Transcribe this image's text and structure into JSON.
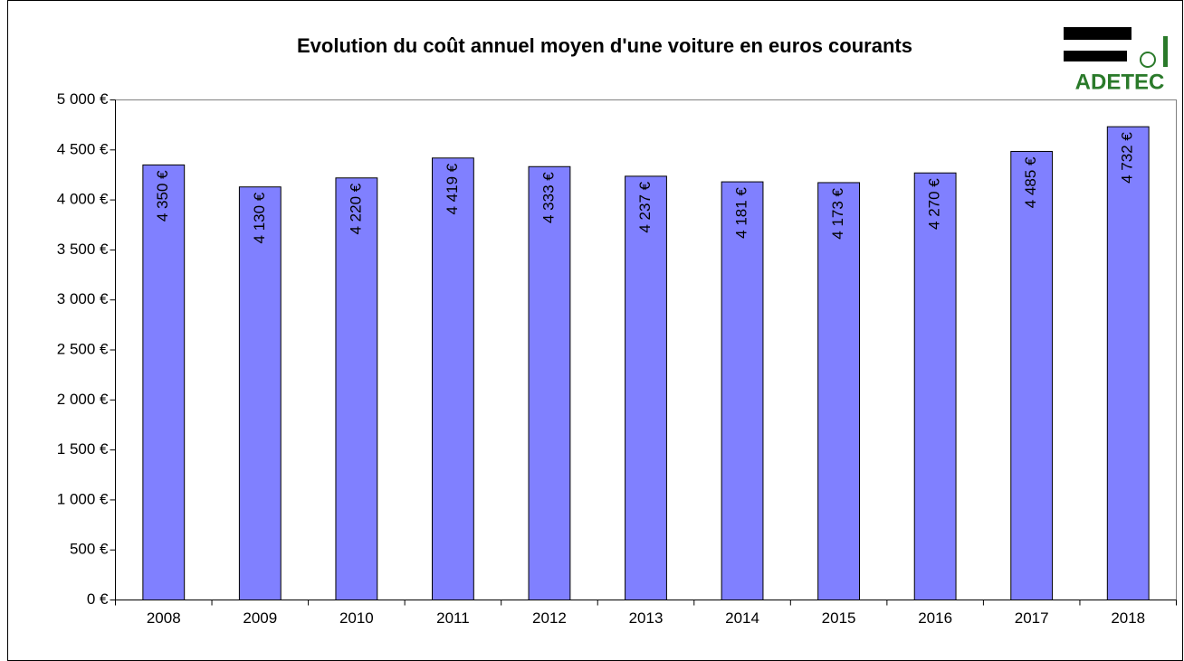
{
  "chart_data": {
    "type": "bar",
    "title": "Evolution du coût annuel moyen d'une voiture en euros courants",
    "logo": "ADETEC",
    "categories": [
      "2008",
      "2009",
      "2010",
      "2011",
      "2012",
      "2013",
      "2014",
      "2015",
      "2016",
      "2017",
      "2018"
    ],
    "values": [
      4350,
      4130,
      4220,
      4419,
      4333,
      4237,
      4181,
      4173,
      4270,
      4485,
      4732
    ],
    "value_labels": [
      "4 350 €",
      "4 130 €",
      "4 220 €",
      "4 419 €",
      "4 333 €",
      "4 237 €",
      "4 181 €",
      "4 173 €",
      "4 270 €",
      "4 485 €",
      "4 732 €"
    ],
    "color": "#8080ff",
    "ylim": [
      0,
      5000
    ],
    "yticks": [
      {
        "value": 0,
        "label": "0 €"
      },
      {
        "value": 500,
        "label": "500 €"
      },
      {
        "value": 1000,
        "label": "1 000 €"
      },
      {
        "value": 1500,
        "label": "1 500 €"
      },
      {
        "value": 2000,
        "label": "2 000 €"
      },
      {
        "value": 2500,
        "label": "2 500 €"
      },
      {
        "value": 3000,
        "label": "3 000 €"
      },
      {
        "value": 3500,
        "label": "3 500 €"
      },
      {
        "value": 4000,
        "label": "4 000 €"
      },
      {
        "value": 4500,
        "label": "4 500 €"
      },
      {
        "value": 5000,
        "label": "5 000 €"
      }
    ],
    "grid": false
  }
}
